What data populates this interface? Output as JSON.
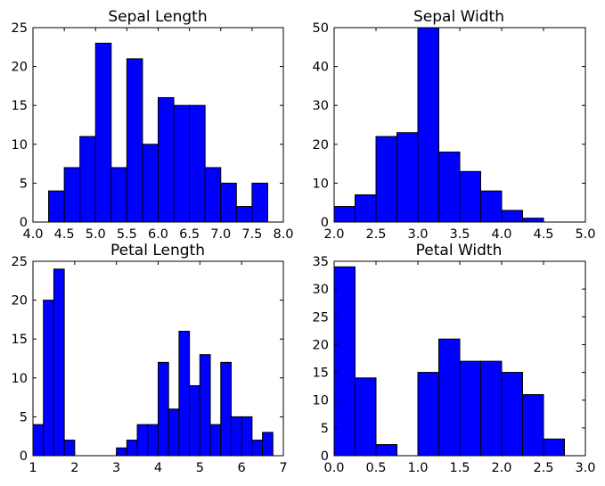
{
  "chart_data": [
    {
      "type": "bar",
      "title": "Sepal Length",
      "xlabel": "",
      "ylabel": "",
      "xlim": [
        4.0,
        8.0
      ],
      "ylim": [
        0,
        25
      ],
      "xticks": [
        "4.0",
        "4.5",
        "5.0",
        "5.5",
        "6.0",
        "6.5",
        "7.0",
        "7.5",
        "8.0"
      ],
      "yticks": [
        "0",
        "5",
        "10",
        "15",
        "20",
        "25"
      ],
      "bin_edges": [
        4.0,
        4.25,
        4.5,
        4.75,
        5.0,
        5.25,
        5.5,
        5.75,
        6.0,
        6.25,
        6.5,
        6.75,
        7.0,
        7.25,
        7.5,
        7.75,
        8.0
      ],
      "values": [
        0,
        4,
        7,
        11,
        23,
        7,
        21,
        10,
        16,
        15,
        15,
        7,
        5,
        2,
        5,
        0
      ],
      "color": "#0000ff"
    },
    {
      "type": "bar",
      "title": "Sepal Width",
      "xlabel": "",
      "ylabel": "",
      "xlim": [
        2.0,
        5.0
      ],
      "ylim": [
        0,
        50
      ],
      "xticks": [
        "2.0",
        "2.5",
        "3.0",
        "3.5",
        "4.0",
        "4.5",
        "5.0"
      ],
      "yticks": [
        "0",
        "10",
        "20",
        "30",
        "40",
        "50"
      ],
      "bin_edges": [
        2.0,
        2.25,
        2.5,
        2.75,
        3.0,
        3.25,
        3.5,
        3.75,
        4.0,
        4.25,
        4.5,
        4.75,
        5.0
      ],
      "values": [
        4,
        7,
        22,
        23,
        50,
        18,
        13,
        8,
        3,
        1,
        0,
        0
      ],
      "color": "#0000ff"
    },
    {
      "type": "bar",
      "title": "Petal Length",
      "xlabel": "",
      "ylabel": "",
      "xlim": [
        1,
        7
      ],
      "ylim": [
        0,
        25
      ],
      "xticks": [
        "1",
        "2",
        "3",
        "4",
        "5",
        "6",
        "7"
      ],
      "yticks": [
        "0",
        "5",
        "10",
        "15",
        "20",
        "25"
      ],
      "bin_edges": [
        1.0,
        1.25,
        1.5,
        1.75,
        2.0,
        2.25,
        2.5,
        2.75,
        3.0,
        3.25,
        3.5,
        3.75,
        4.0,
        4.25,
        4.5,
        4.75,
        5.0,
        5.25,
        5.5,
        5.75,
        6.0,
        6.25,
        6.5,
        6.75,
        7.0
      ],
      "values": [
        4,
        20,
        24,
        2,
        0,
        0,
        0,
        0,
        1,
        2,
        4,
        4,
        12,
        6,
        16,
        9,
        13,
        4,
        12,
        5,
        5,
        2,
        3,
        0
      ],
      "color": "#0000ff"
    },
    {
      "type": "bar",
      "title": "Petal Width",
      "xlabel": "",
      "ylabel": "",
      "xlim": [
        0.0,
        3.0
      ],
      "ylim": [
        0,
        35
      ],
      "xticks": [
        "0.0",
        "0.5",
        "1.0",
        "1.5",
        "2.0",
        "2.5",
        "3.0"
      ],
      "yticks": [
        "0",
        "5",
        "10",
        "15",
        "20",
        "25",
        "30",
        "35"
      ],
      "bin_edges": [
        0.0,
        0.25,
        0.5,
        0.75,
        1.0,
        1.25,
        1.5,
        1.75,
        2.0,
        2.25,
        2.5,
        2.75,
        3.0
      ],
      "values": [
        34,
        14,
        2,
        0,
        15,
        21,
        17,
        17,
        15,
        11,
        3,
        0
      ],
      "color": "#0000ff"
    }
  ]
}
